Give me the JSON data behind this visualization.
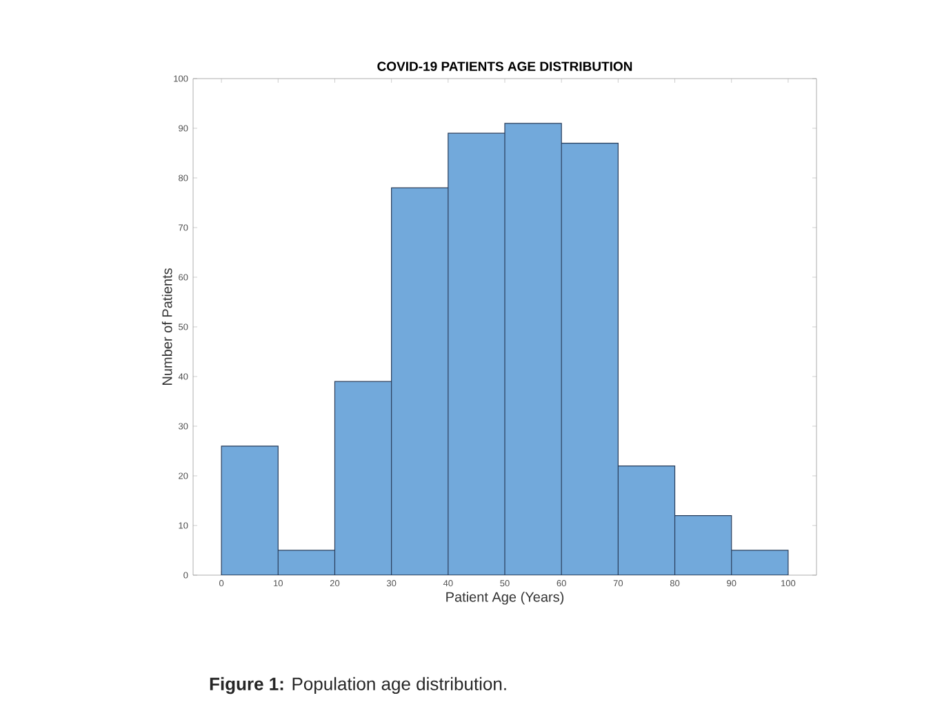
{
  "chart_data": {
    "type": "histogram",
    "title": "COVID-19 PATIENTS AGE DISTRIBUTION",
    "xlabel": "Patient Age (Years)",
    "ylabel": "Number of Patients",
    "bins": [
      0,
      10,
      20,
      30,
      40,
      50,
      60,
      70,
      80,
      90,
      100
    ],
    "values": [
      26,
      5,
      39,
      78,
      89,
      91,
      87,
      22,
      12,
      5
    ],
    "color": "#72a9db",
    "xlim": [
      -5,
      105
    ],
    "ylim": [
      0,
      100
    ],
    "xticks": [
      0,
      10,
      20,
      30,
      40,
      50,
      60,
      70,
      80,
      90,
      100
    ],
    "yticks": [
      0,
      10,
      20,
      30,
      40,
      50,
      60,
      70,
      80,
      90,
      100
    ],
    "grid": false,
    "annotations": [
      "**Figure 1:** Population age distribution."
    ]
  }
}
